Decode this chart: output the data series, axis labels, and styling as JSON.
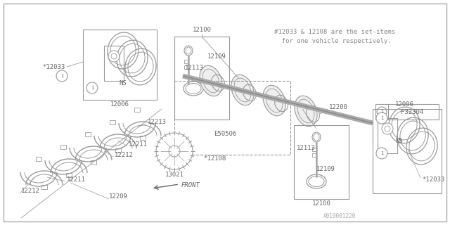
{
  "bg_color": "#ffffff",
  "line_color": "#999999",
  "text_color": "#666666",
  "note_line1": "#12033 & 12108 are the set-items",
  "note_line2": "  for one vehicle respectively.",
  "part_code": "F32304",
  "catalog_code": "A010001220"
}
